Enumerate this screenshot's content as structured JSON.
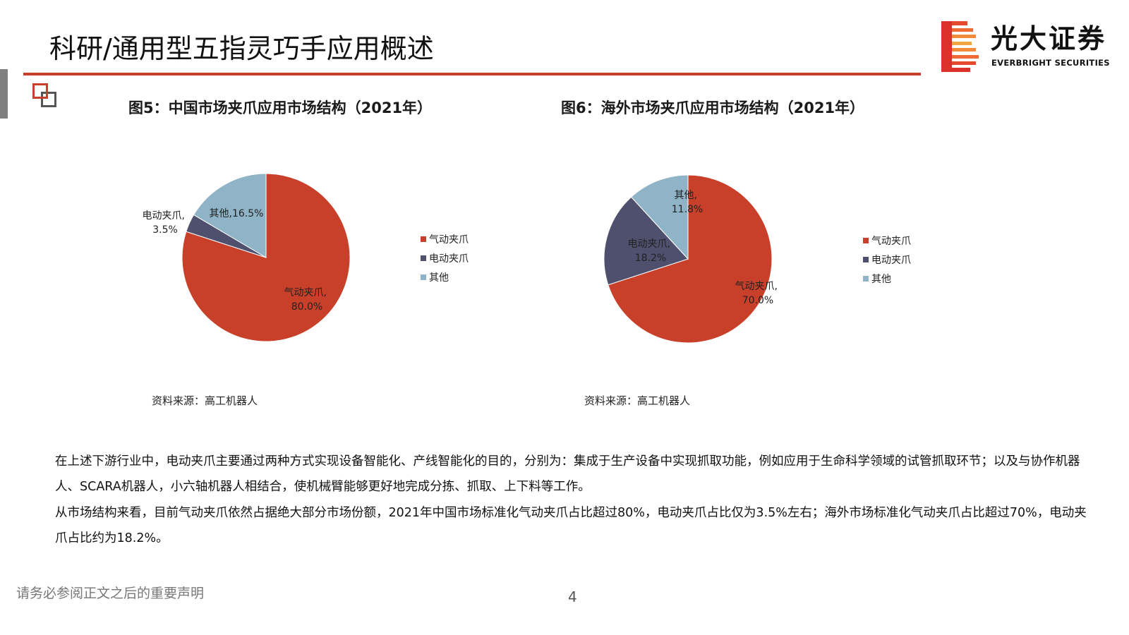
{
  "header": {
    "title": "科研/通用型五指灵巧手应用概述",
    "logo_cn": "光大证券",
    "logo_en": "EVERBRIGHT SECURITIES"
  },
  "colors": {
    "accent": "#c8402a",
    "pneumatic": "#c8402a",
    "electric": "#4f4f6e",
    "other": "#8fb3c7"
  },
  "chart_data": [
    {
      "type": "pie",
      "title": "图5：中国市场夹爪应用市场结构（2021年）",
      "categories": [
        "气动夹爪",
        "电动夹爪",
        "其他"
      ],
      "values": [
        80.0,
        3.5,
        16.5
      ],
      "value_labels": [
        "80.0%",
        "3.5%",
        "16.5%"
      ],
      "legend": [
        "气动夹爪",
        "电动夹爪",
        "其他"
      ],
      "legend_position": "right",
      "source": "资料来源：高工机器人"
    },
    {
      "type": "pie",
      "title": "图6：海外市场夹爪应用市场结构（2021年）",
      "categories": [
        "气动夹爪",
        "电动夹爪",
        "其他"
      ],
      "values": [
        70.0,
        18.2,
        11.8
      ],
      "value_labels": [
        "70.0%",
        "18.2%",
        "11.8%"
      ],
      "legend": [
        "气动夹爪",
        "电动夹爪",
        "其他"
      ],
      "legend_position": "right",
      "source": "资料来源：高工机器人"
    }
  ],
  "body": {
    "paragraph_1": "在上述下游行业中，电动夹爪主要通过两种方式实现设备智能化、产线智能化的目的，分别为：集成于生产设备中实现抓取功能，例如应用于生命科学领域的试管抓取环节；以及与协作机器人、SCARA机器人，小六轴机器人相结合，使机械臂能够更好地完成分拣、抓取、上下料等工作。",
    "paragraph_2": "从市场结构来看，目前气动夹爪依然占据绝大部分市场份额，2021年中国市场标准化气动夹爪占比超过80%，电动夹爪占比仅为3.5%左右；海外市场标准化气动夹爪占比超过70%，电动夹爪占比约为18.2%。"
  },
  "footer": {
    "note": "请务必参阅正文之后的重要声明",
    "page": "4"
  }
}
